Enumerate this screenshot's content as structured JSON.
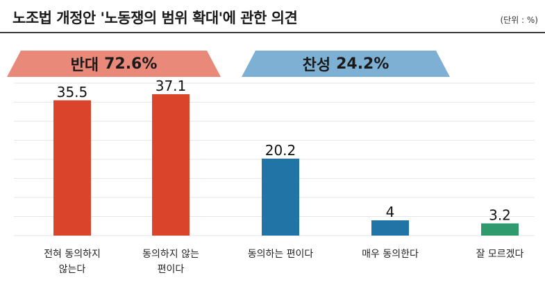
{
  "title": "노조법 개정안 '노동쟁의 범위 확대'에 관한 의견",
  "unit": "(단위 : %)",
  "groups": {
    "oppose": {
      "label": "반대",
      "value": "72.6%"
    },
    "support": {
      "label": "찬성",
      "value": "24.2%"
    }
  },
  "colors": {
    "oppose": "#d9442a",
    "support": "#2174a6",
    "unsure": "#2e9a6e",
    "oppose_banner": "#e8897a",
    "support_banner": "#7eb0d3"
  },
  "chart_data": {
    "type": "bar",
    "title": "노조법 개정안 '노동쟁의 범위 확대'에 관한 의견",
    "categories": [
      "전혀 동의하지 않는다",
      "동의하지 않는 편이다",
      "동의하는 편이다",
      "매우 동의한다",
      "잘 모르겠다"
    ],
    "values": [
      35.5,
      37.1,
      20.2,
      4,
      3.2
    ],
    "value_labels": [
      "35.5",
      "37.1",
      "20.2",
      "4",
      "3.2"
    ],
    "bar_colors": [
      "#d9442a",
      "#d9442a",
      "#2174a6",
      "#2174a6",
      "#2e9a6e"
    ],
    "ylim": [
      0,
      40
    ],
    "grid": true,
    "xlabel": "",
    "ylabel": ""
  },
  "category_lines": [
    [
      "전혀 동의하지",
      "않는다"
    ],
    [
      "동의하지 않는",
      "편이다"
    ],
    [
      "동의하는 편이다"
    ],
    [
      "매우 동의한다"
    ],
    [
      "잘 모르겠다"
    ]
  ]
}
